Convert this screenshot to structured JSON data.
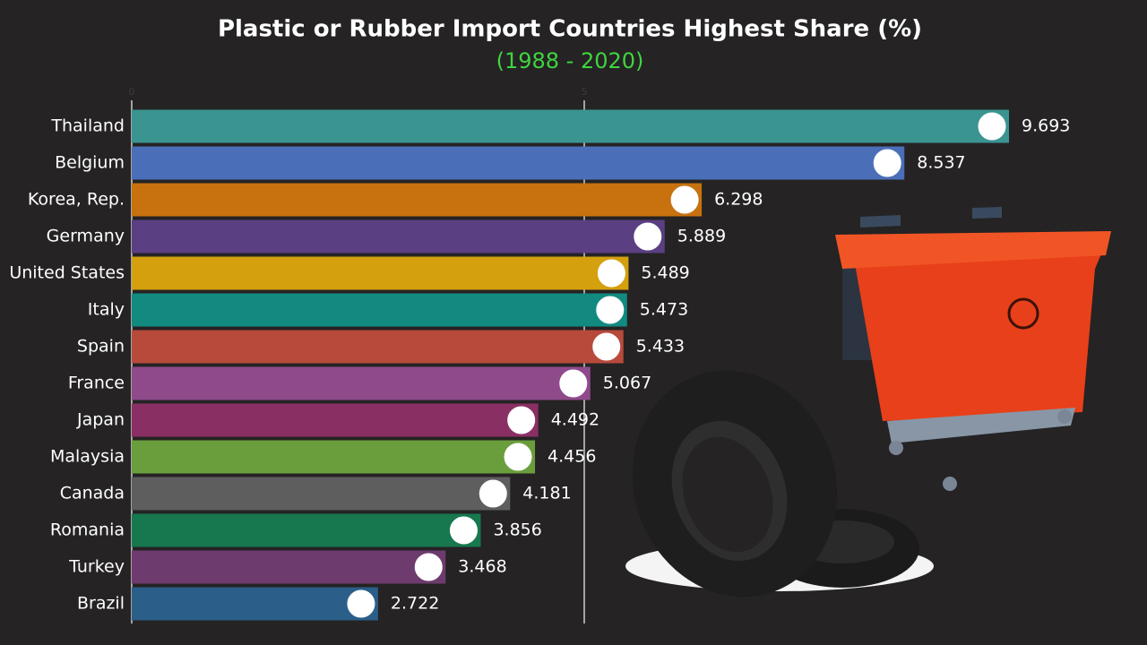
{
  "chart_data": {
    "type": "bar",
    "orientation": "horizontal",
    "title": "Plastic or Rubber Import Countries Highest Share (%)",
    "subtitle": "(1988 - 2020)",
    "categories": [
      "Thailand",
      "Belgium",
      "Korea, Rep.",
      "Germany",
      "United States",
      "Italy",
      "Spain",
      "France",
      "Japan",
      "Malaysia",
      "Canada",
      "Romania",
      "Turkey",
      "Brazil"
    ],
    "values": [
      9.693,
      8.537,
      6.298,
      5.889,
      5.489,
      5.473,
      5.433,
      5.067,
      4.492,
      4.456,
      4.181,
      3.856,
      3.468,
      2.722
    ],
    "colors": [
      "#3a9490",
      "#4a6fb8",
      "#c7720f",
      "#5a3f82",
      "#d4a00e",
      "#128a80",
      "#b84a3c",
      "#8f4a8c",
      "#8a2f63",
      "#6a9e3c",
      "#5e5e5e",
      "#17784f",
      "#6e3b6e",
      "#2b5e88"
    ],
    "xlim": [
      0,
      11.2
    ],
    "xticks": [
      0,
      5
    ],
    "grid": true
  }
}
